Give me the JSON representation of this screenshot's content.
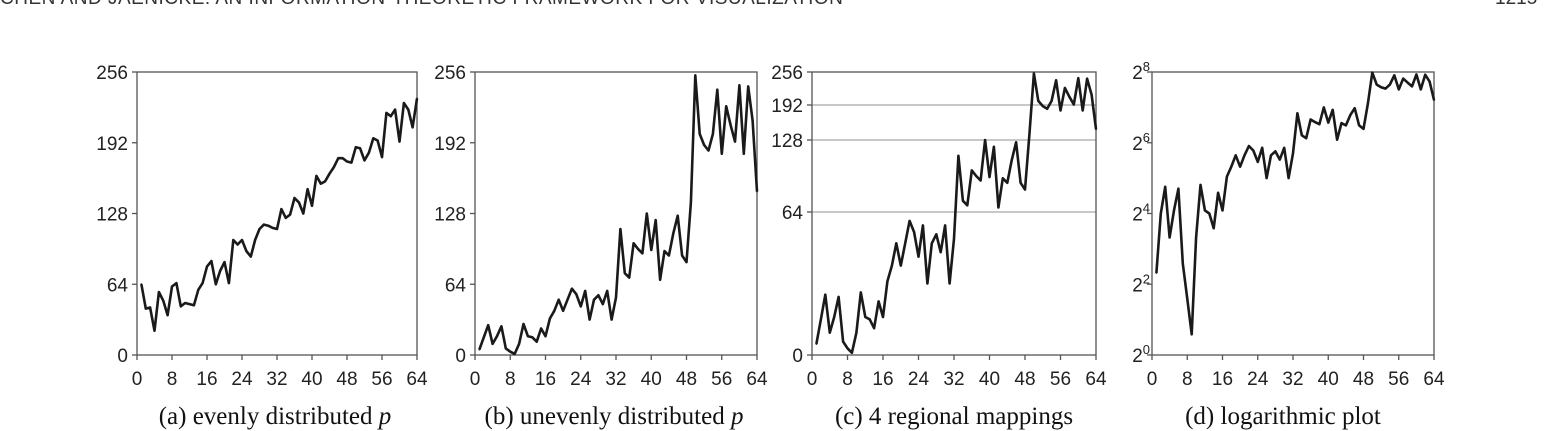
{
  "header": {
    "running_title": "CHEN AND JAENICKE: AN INFORMATION-THEORETIC FRAMEWORK FOR VISUALIZATION",
    "page_number": "1215"
  },
  "colors": {
    "line": "#1a1a1a",
    "axis": "#555555",
    "gridline": "#c8c8c8"
  },
  "chart_data": [
    {
      "type": "line",
      "caption": "(a) evenly distributed ",
      "caption_italic": "p",
      "x_ticks": [
        "0",
        "8",
        "16",
        "24",
        "32",
        "40",
        "48",
        "56",
        "64"
      ],
      "xlim": [
        0,
        64
      ],
      "y_ticks": [
        {
          "v": 0,
          "label": "0"
        },
        {
          "v": 64,
          "label": "64"
        },
        {
          "v": 128,
          "label": "128"
        },
        {
          "v": 192,
          "label": "192"
        },
        {
          "v": 256,
          "label": "256"
        }
      ],
      "ylim": [
        0,
        256
      ],
      "grid": false,
      "x": [
        1,
        2,
        3,
        4,
        5,
        6,
        7,
        8,
        9,
        10,
        11,
        12,
        13,
        14,
        15,
        16,
        17,
        18,
        19,
        20,
        21,
        22,
        23,
        24,
        25,
        26,
        27,
        28,
        29,
        30,
        31,
        32,
        33,
        34,
        35,
        36,
        37,
        38,
        39,
        40,
        41,
        42,
        43,
        44,
        45,
        46,
        47,
        48,
        49,
        50,
        51,
        52,
        53,
        54,
        55,
        56,
        57,
        58,
        59,
        60,
        61,
        62,
        63,
        64
      ],
      "values": [
        64,
        42,
        43,
        22,
        57,
        49,
        36,
        62,
        65,
        44,
        47,
        46,
        45,
        59,
        65,
        80,
        85,
        64,
        76,
        84,
        65,
        104,
        100,
        104,
        94,
        89,
        104,
        114,
        118,
        117,
        115,
        114,
        132,
        124,
        127,
        142,
        138,
        128,
        150,
        135,
        162,
        155,
        157,
        164,
        170,
        178,
        178,
        175,
        174,
        188,
        187,
        176,
        183,
        196,
        194,
        179,
        219,
        216,
        222,
        193,
        228,
        222,
        206,
        232
      ]
    },
    {
      "type": "line",
      "caption": "(b) unevenly distributed ",
      "caption_italic": "p",
      "x_ticks": [
        "0",
        "8",
        "16",
        "24",
        "32",
        "40",
        "48",
        "56",
        "64"
      ],
      "xlim": [
        0,
        64
      ],
      "y_ticks": [
        {
          "v": 0,
          "label": "0"
        },
        {
          "v": 64,
          "label": "64"
        },
        {
          "v": 128,
          "label": "128"
        },
        {
          "v": 192,
          "label": "192"
        },
        {
          "v": 256,
          "label": "256"
        }
      ],
      "ylim": [
        0,
        256
      ],
      "grid": false,
      "x": [
        1,
        2,
        3,
        4,
        5,
        6,
        7,
        8,
        9,
        10,
        11,
        12,
        13,
        14,
        15,
        16,
        17,
        18,
        19,
        20,
        21,
        22,
        23,
        24,
        25,
        26,
        27,
        28,
        29,
        30,
        31,
        32,
        33,
        34,
        35,
        36,
        37,
        38,
        39,
        40,
        41,
        42,
        43,
        44,
        45,
        46,
        47,
        48,
        49,
        50,
        51,
        52,
        53,
        54,
        55,
        56,
        57,
        58,
        59,
        60,
        61,
        62,
        63,
        64
      ],
      "values": [
        5,
        16,
        27,
        10,
        17,
        26,
        6,
        3,
        1,
        10,
        28,
        17,
        16,
        12,
        24,
        17,
        33,
        40,
        50,
        40,
        50,
        60,
        55,
        44,
        58,
        32,
        50,
        54,
        46,
        58,
        32,
        52,
        114,
        74,
        70,
        101,
        96,
        92,
        128,
        95,
        122,
        68,
        94,
        90,
        110,
        126,
        90,
        84,
        138,
        253,
        200,
        190,
        185,
        200,
        240,
        182,
        225,
        208,
        193,
        244,
        182,
        243,
        212,
        148
      ]
    },
    {
      "type": "line",
      "caption": "(c) 4 regional mappings",
      "caption_italic": "",
      "x_ticks": [
        "0",
        "8",
        "16",
        "24",
        "32",
        "40",
        "48",
        "56",
        "64"
      ],
      "xlim": [
        0,
        64
      ],
      "y_ticks": [
        {
          "v": 0,
          "label": "0"
        },
        {
          "v": 64,
          "label": "64"
        },
        {
          "v": 128,
          "label": "128"
        },
        {
          "v": 192,
          "label": "192"
        },
        {
          "v": 256,
          "label": "256"
        }
      ],
      "ylim": [
        0,
        256
      ],
      "y_scale_note": "piecewise: 0–64, 64–128, 128–192, 192–256 regional mappings",
      "grid": true,
      "grid_lines": [
        64,
        128,
        192
      ],
      "x": [
        1,
        2,
        3,
        4,
        5,
        6,
        7,
        8,
        9,
        10,
        11,
        12,
        13,
        14,
        15,
        16,
        17,
        18,
        19,
        20,
        21,
        22,
        23,
        24,
        25,
        26,
        27,
        28,
        29,
        30,
        31,
        32,
        33,
        34,
        35,
        36,
        37,
        38,
        39,
        40,
        41,
        42,
        43,
        44,
        45,
        46,
        47,
        48,
        49,
        50,
        51,
        52,
        53,
        54,
        55,
        56,
        57,
        58,
        59,
        60,
        61,
        62,
        63,
        64
      ],
      "values": [
        5,
        16,
        27,
        10,
        17,
        26,
        6,
        3,
        1,
        10,
        28,
        17,
        16,
        12,
        24,
        17,
        33,
        40,
        50,
        40,
        50,
        60,
        55,
        44,
        58,
        32,
        50,
        54,
        46,
        58,
        32,
        52,
        114,
        74,
        70,
        101,
        96,
        92,
        128,
        95,
        122,
        68,
        94,
        90,
        110,
        126,
        90,
        84,
        138,
        253,
        200,
        190,
        185,
        200,
        240,
        182,
        225,
        208,
        193,
        244,
        182,
        243,
        212,
        148
      ]
    },
    {
      "type": "line",
      "caption": "(d) logarithmic plot",
      "caption_italic": "",
      "x_ticks": [
        "0",
        "8",
        "16",
        "24",
        "32",
        "40",
        "48",
        "56",
        "64"
      ],
      "xlim": [
        0,
        64
      ],
      "y_ticks": [
        {
          "v": 1,
          "base": "2",
          "exp": "0"
        },
        {
          "v": 4,
          "base": "2",
          "exp": "2"
        },
        {
          "v": 16,
          "base": "2",
          "exp": "4"
        },
        {
          "v": 64,
          "base": "2",
          "exp": "6"
        },
        {
          "v": 256,
          "base": "2",
          "exp": "8"
        }
      ],
      "ylim": [
        1,
        256
      ],
      "y_scale": "log2",
      "grid": false,
      "x": [
        1,
        2,
        3,
        4,
        5,
        6,
        7,
        8,
        9,
        10,
        11,
        12,
        13,
        14,
        15,
        16,
        17,
        18,
        19,
        20,
        21,
        22,
        23,
        24,
        25,
        26,
        27,
        28,
        29,
        30,
        31,
        32,
        33,
        34,
        35,
        36,
        37,
        38,
        39,
        40,
        41,
        42,
        43,
        44,
        45,
        46,
        47,
        48,
        49,
        50,
        51,
        52,
        53,
        54,
        55,
        56,
        57,
        58,
        59,
        60,
        61,
        62,
        63,
        64
      ],
      "values": [
        5,
        16,
        27,
        10,
        17,
        26,
        6,
        3,
        1.5,
        10,
        28,
        17,
        16,
        12,
        24,
        17,
        33,
        40,
        50,
        40,
        50,
        60,
        55,
        44,
        58,
        32,
        50,
        54,
        46,
        58,
        32,
        52,
        114,
        74,
        70,
        101,
        96,
        92,
        128,
        95,
        122,
        68,
        94,
        90,
        110,
        126,
        90,
        84,
        138,
        253,
        200,
        190,
        185,
        200,
        240,
        182,
        225,
        208,
        193,
        244,
        182,
        243,
        212,
        148
      ]
    }
  ]
}
